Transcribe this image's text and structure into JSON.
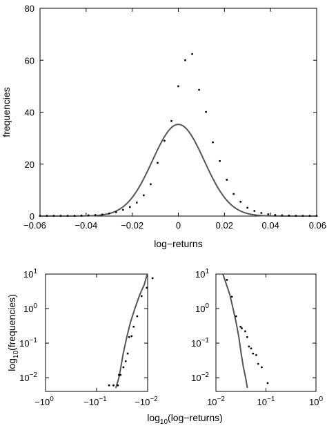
{
  "chart_data": [
    {
      "type": "scatter",
      "xlabel": "log−returns",
      "ylabel": "frequencies",
      "xlim": [
        -0.06,
        0.06
      ],
      "ylim": [
        0,
        80
      ],
      "x_ticks": [
        "−0.06",
        "−0.04",
        "−0.02",
        "0",
        "0.02",
        "0.04",
        "0.06"
      ],
      "x_tick_values": [
        -0.06,
        -0.04,
        -0.02,
        0,
        0.02,
        0.04,
        0.06
      ],
      "y_ticks": [
        "0",
        "20",
        "40",
        "60",
        "80"
      ],
      "y_tick_values": [
        0,
        20,
        40,
        60,
        80
      ],
      "grid": false,
      "series": [
        {
          "kind": "points",
          "x": [
            -0.06,
            -0.057,
            -0.054,
            -0.051,
            -0.048,
            -0.045,
            -0.042,
            -0.039,
            -0.036,
            -0.033,
            -0.03,
            -0.027,
            -0.024,
            -0.021,
            -0.018,
            -0.015,
            -0.012,
            -0.009,
            -0.006,
            -0.003,
            0,
            0.003,
            0.006,
            0.009,
            0.012,
            0.015,
            0.018,
            0.021,
            0.024,
            0.027,
            0.03,
            0.033,
            0.036,
            0.039,
            0.042,
            0.045,
            0.048,
            0.051,
            0.054,
            0.057,
            0.06
          ],
          "y": [
            0.1,
            0.1,
            0.1,
            0.1,
            0.1,
            0.1,
            0.2,
            0.3,
            0.4,
            0.6,
            1.0,
            1.5,
            2.4,
            3.5,
            5.2,
            8.0,
            12.3,
            20.5,
            29.0,
            36.6,
            50.0,
            60.0,
            62.4,
            48.6,
            40.1,
            28.4,
            21.2,
            14.0,
            8.5,
            5.5,
            3.2,
            2.0,
            1.2,
            0.7,
            0.4,
            0.3,
            0.2,
            0.1,
            0.1,
            0.1,
            0.1
          ]
        },
        {
          "kind": "curve",
          "model": "normal",
          "mean": 0,
          "peak": 35.3,
          "std": 0.0112
        }
      ]
    },
    {
      "type": "scatter",
      "xlabel": "",
      "ylabel": "log10(frequencies)",
      "ylabel_parts": [
        "log",
        "10",
        "(frequencies)"
      ],
      "y_scale": "log",
      "x_scale": "symlog",
      "ylim": [
        0.004,
        10
      ],
      "x_ticks": [
        {
          "base": "−10",
          "exp": "0"
        },
        {
          "base": "−10",
          "exp": "−1"
        },
        {
          "base": "−10",
          "exp": "−2"
        }
      ],
      "y_ticks": [
        {
          "base": "10",
          "exp": "1"
        },
        {
          "base": "10",
          "exp": "0"
        },
        {
          "base": "10",
          "exp": "−1"
        },
        {
          "base": "10",
          "exp": "−2"
        }
      ],
      "series": [
        {
          "kind": "points",
          "x": [
            -0.0569,
            -0.0466,
            -0.0382,
            -0.0366,
            -0.0339,
            -0.0298,
            -0.0269,
            -0.0246,
            -0.023,
            -0.0206,
            -0.0188,
            -0.016,
            -0.0131,
            -0.0104,
            -0.008
          ],
          "y": [
            0.006,
            0.006,
            0.006,
            0.012,
            0.012,
            0.02,
            0.03,
            0.05,
            0.15,
            0.16,
            0.3,
            0.6,
            2.3,
            4.0,
            7.6
          ]
        },
        {
          "kind": "curve",
          "x": [
            -0.0421,
            -0.0365,
            -0.0335,
            -0.0301,
            -0.0256,
            -0.0217,
            -0.0178,
            -0.0143,
            -0.0116,
            -0.0102
          ],
          "y": [
            0.005,
            0.01,
            0.02,
            0.05,
            0.15,
            0.4,
            1.0,
            2.5,
            5.0,
            10
          ]
        }
      ]
    },
    {
      "type": "scatter",
      "xlabel": "log10(log−returns)",
      "xlabel_parts": [
        "log",
        "10",
        "(log−returns)"
      ],
      "ylabel": "",
      "y_scale": "log",
      "x_scale": "log",
      "xlim": [
        0.01,
        1
      ],
      "ylim": [
        0.004,
        10
      ],
      "x_ticks": [
        {
          "base": "10",
          "exp": "−2"
        },
        {
          "base": "10",
          "exp": "−1"
        },
        {
          "base": "10",
          "exp": "0"
        }
      ],
      "y_ticks": [
        {
          "base": "10",
          "exp": "1"
        },
        {
          "base": "10",
          "exp": "0"
        },
        {
          "base": "10",
          "exp": "−1"
        },
        {
          "base": "10",
          "exp": "−2"
        }
      ],
      "series": [
        {
          "kind": "points",
          "x": [
            0.0166,
            0.0208,
            0.0253,
            0.0311,
            0.0329,
            0.0384,
            0.0422,
            0.0457,
            0.0505,
            0.0552,
            0.0638,
            0.07,
            0.0824,
            0.108
          ],
          "y": [
            6.8,
            2.2,
            0.6,
            0.3,
            0.27,
            0.22,
            0.15,
            0.08,
            0.07,
            0.05,
            0.045,
            0.025,
            0.02,
            0.007
          ]
        },
        {
          "kind": "curve",
          "x": [
            0.0138,
            0.0162,
            0.019,
            0.022,
            0.0253,
            0.0287,
            0.032,
            0.0354,
            0.0392,
            0.0426
          ],
          "y": [
            10,
            5,
            2.5,
            1.0,
            0.4,
            0.15,
            0.05,
            0.02,
            0.01,
            0.005
          ]
        }
      ]
    }
  ]
}
